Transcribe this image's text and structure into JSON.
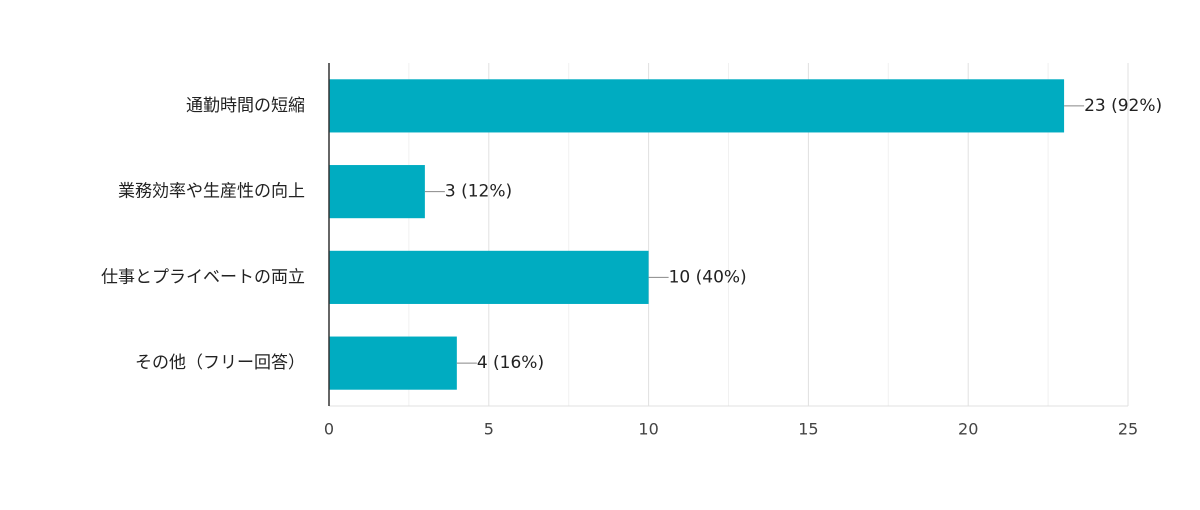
{
  "chart_data": {
    "type": "bar",
    "orientation": "horizontal",
    "categories": [
      "通勤時間の短縮",
      "業務効率や生産性の向上",
      "仕事とプライベートの両立",
      "その他（フリー回答）"
    ],
    "values": [
      23,
      3,
      10,
      4
    ],
    "data_labels": [
      "23 (92%)",
      "3 (12%)",
      "10 (40%)",
      "4 (16%)"
    ],
    "xlim": [
      0,
      25
    ],
    "x_ticks": [
      0,
      5,
      10,
      15,
      20,
      25
    ],
    "x_tick_labels": [
      "0",
      "5",
      "10",
      "15",
      "20",
      "25"
    ],
    "grid": true,
    "bar_color": "#00acc1",
    "title": "",
    "xlabel": "",
    "ylabel": ""
  }
}
